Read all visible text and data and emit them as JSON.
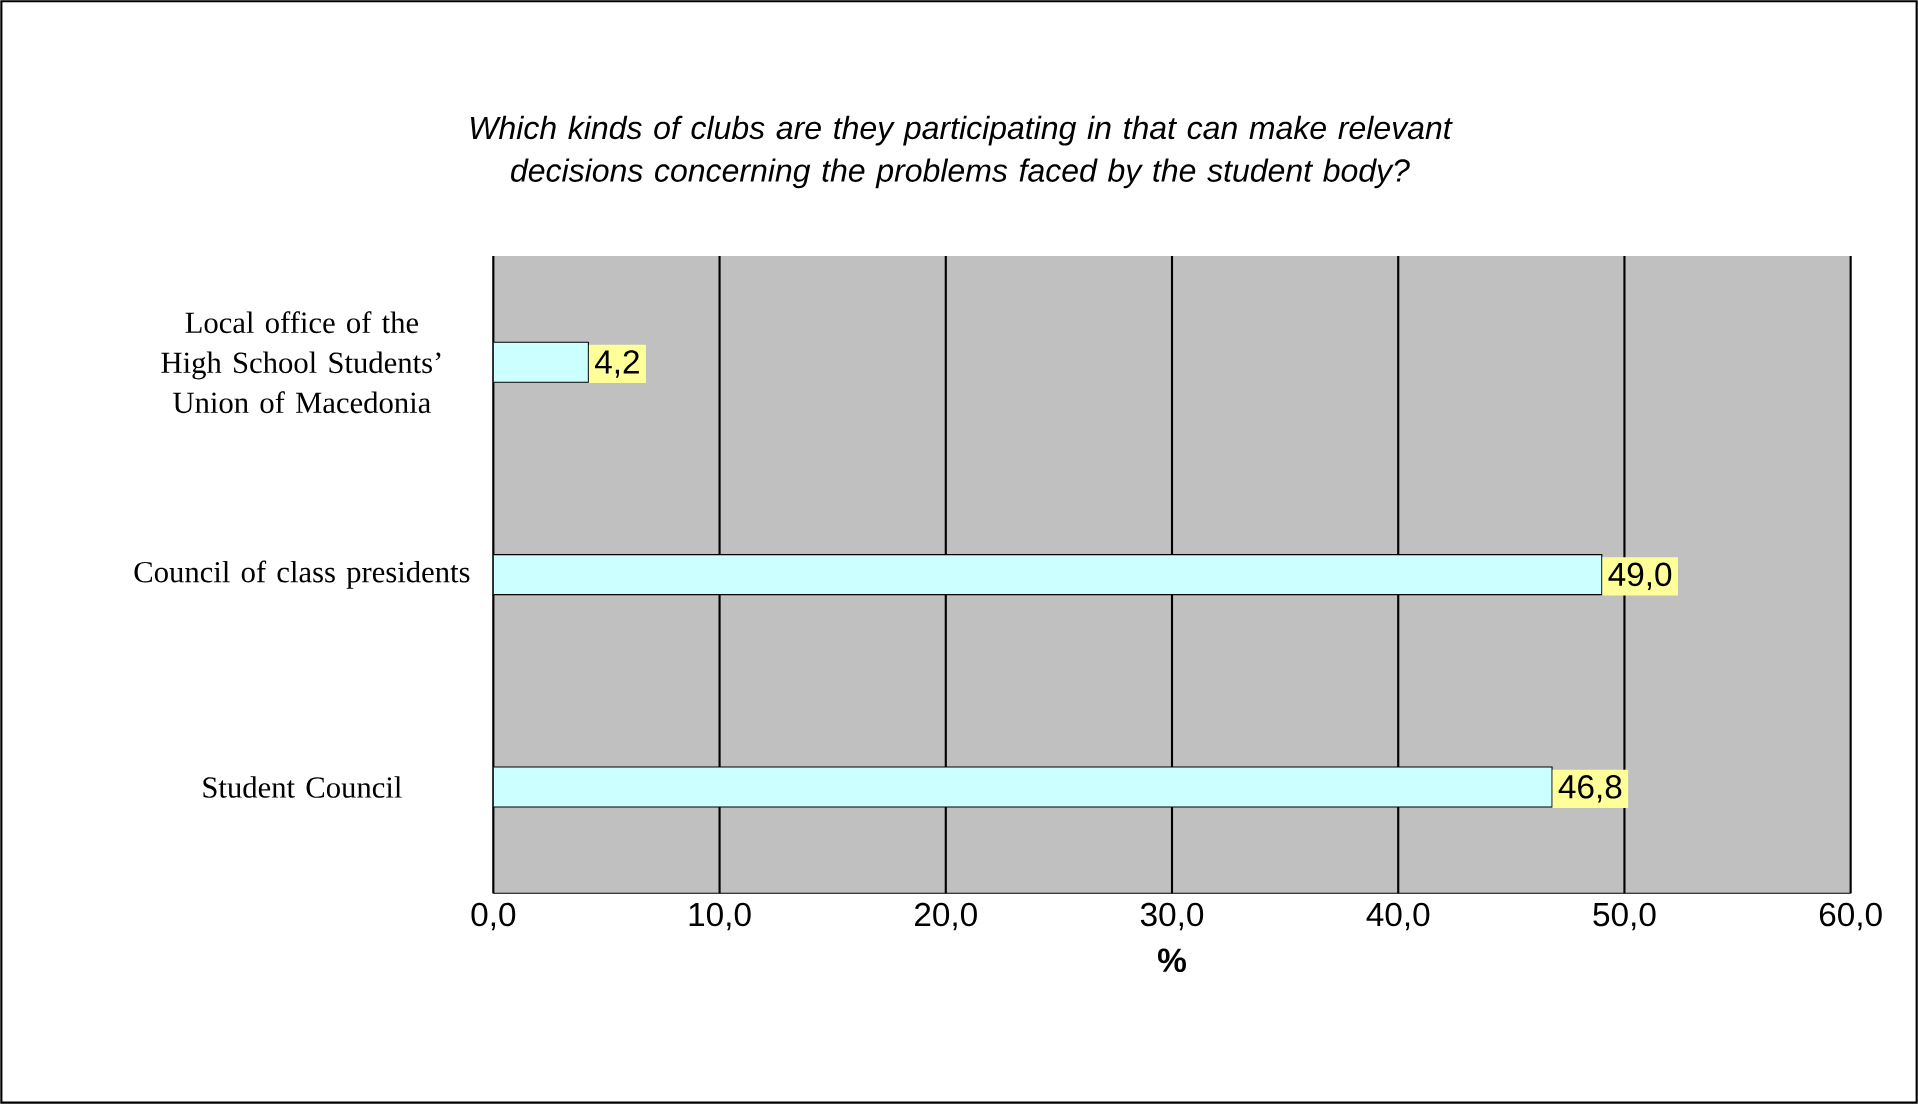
{
  "chart_data": {
    "type": "bar",
    "orientation": "horizontal",
    "title": "Which kinds of clubs are they participating in that can make relevant decisions concerning the problems faced by the student body?",
    "categories": [
      "Local office of the High School Students’ Union of Macedonia",
      "Council of class presidents",
      "Student Council"
    ],
    "values": [
      4.2,
      49.0,
      46.8
    ],
    "value_labels": [
      "4,2",
      "49,0",
      "46,8"
    ],
    "color": "#ccffff",
    "xlabel": "%",
    "xlim": [
      0,
      60
    ],
    "xticks": [
      {
        "value": 0,
        "label": "0,0"
      },
      {
        "value": 10,
        "label": "10,0"
      },
      {
        "value": 20,
        "label": "20,0"
      },
      {
        "value": 30,
        "label": "30,0"
      },
      {
        "value": 40,
        "label": "40,0"
      },
      {
        "value": 50,
        "label": "50,0"
      },
      {
        "value": 60,
        "label": "60,0"
      }
    ],
    "grid": "x"
  }
}
